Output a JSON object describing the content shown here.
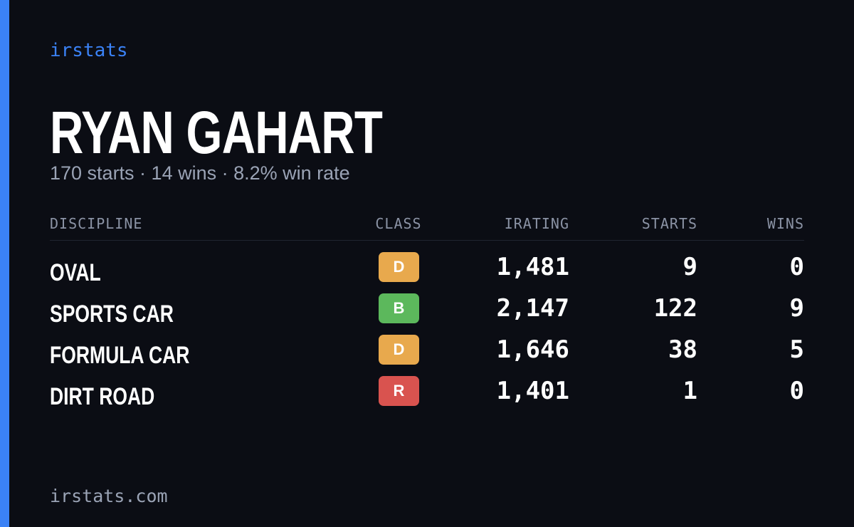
{
  "header": {
    "brand": "irstats",
    "name": "RYAN GAHART",
    "subtitle": "170 starts · 14 wins · 8.2% win rate"
  },
  "table": {
    "columns": [
      "DISCIPLINE",
      "CLASS",
      "IRATING",
      "STARTS",
      "WINS"
    ],
    "rows": [
      {
        "discipline": "OVAL",
        "class": "D",
        "class_color": "#e8a94d",
        "irating": "1,481",
        "starts": 9,
        "wins": 0
      },
      {
        "discipline": "SPORTS CAR",
        "class": "B",
        "class_color": "#5cb85c",
        "irating": "2,147",
        "starts": 122,
        "wins": 9
      },
      {
        "discipline": "FORMULA CAR",
        "class": "D",
        "class_color": "#e8a94d",
        "irating": "1,646",
        "starts": 38,
        "wins": 5
      },
      {
        "discipline": "DIRT ROAD",
        "class": "R",
        "class_color": "#d9534f",
        "irating": "1,401",
        "starts": 1,
        "wins": 0
      }
    ]
  },
  "footer": {
    "url": "irstats.com"
  }
}
